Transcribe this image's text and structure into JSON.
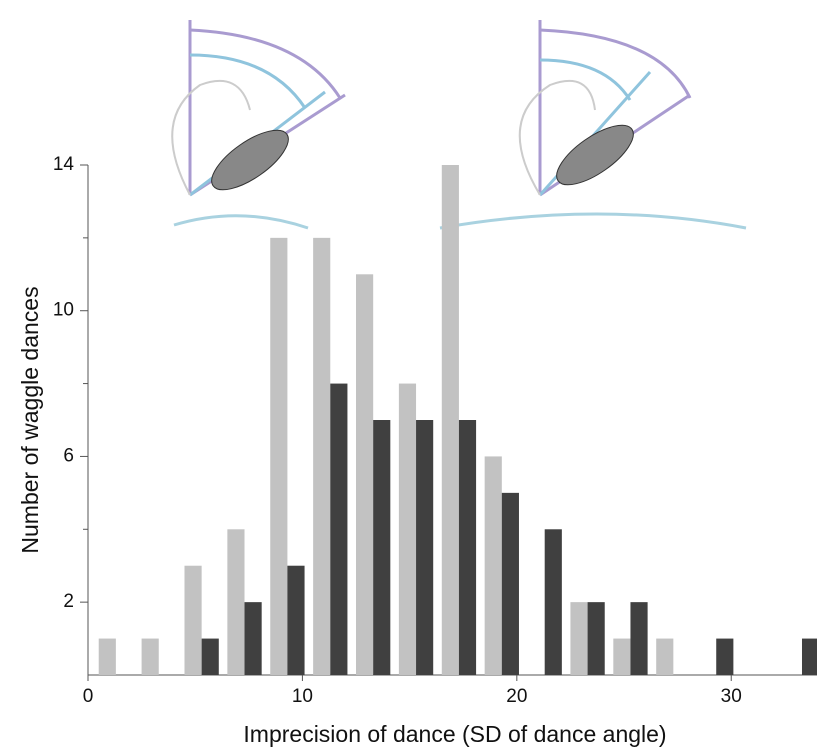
{
  "chart_data": {
    "type": "histogram",
    "x_label": "Imprecision of dance (SD of dance angle)",
    "y_label": "Number of waggle dances",
    "bins": [
      0.3,
      2.3,
      4.3,
      6.3,
      8.3,
      10.3,
      12.3,
      14.3,
      16.3,
      18.3,
      20.3,
      22.3,
      24.3,
      26.3,
      28.3,
      30.3,
      32.3,
      34.3
    ],
    "series": [
      {
        "color": "#c2c2c2",
        "values": [
          1,
          1,
          3,
          4,
          12,
          12,
          11,
          8,
          14,
          6,
          0,
          2,
          1,
          1,
          0,
          0,
          0
        ]
      },
      {
        "color": "#404040",
        "values": [
          0,
          0,
          1,
          2,
          3,
          8,
          7,
          7,
          7,
          5,
          4,
          2,
          2,
          0,
          1,
          0,
          1
        ]
      }
    ],
    "xlim": [
      0,
      34
    ],
    "xticks": [
      0,
      10,
      20,
      30
    ],
    "ylim": [
      0,
      14
    ],
    "yticks": [
      2,
      6,
      10,
      14
    ],
    "yminor_ticks": [
      4,
      8,
      12
    ]
  }
}
